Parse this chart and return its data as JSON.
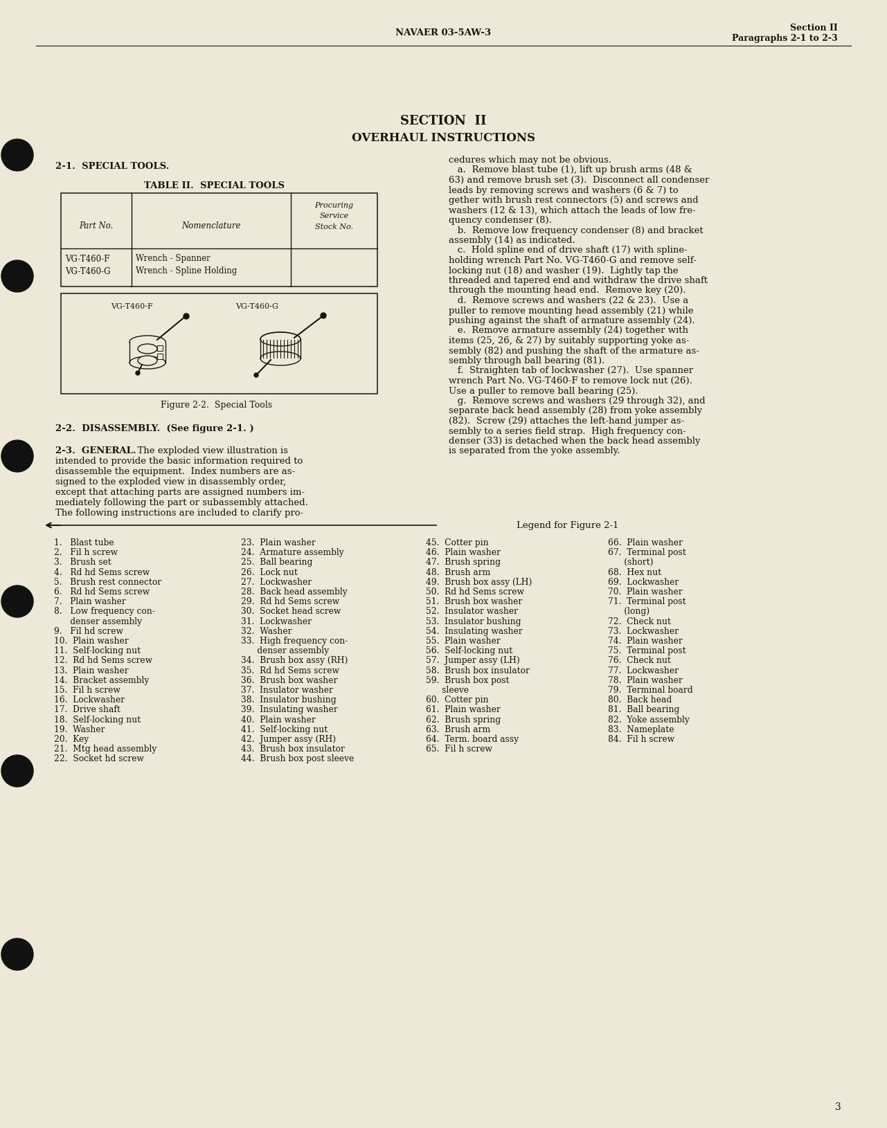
{
  "bg_color": "#ede8d8",
  "text_color": "#1a1410",
  "header_center": "NAVAER 03-5AW-3",
  "header_right_line1": "Section II",
  "header_right_line2": "Paragraphs 2-1 to 2-3",
  "section_title": "SECTION  II",
  "section_subtitle": "OVERHAUL INSTRUCTIONS",
  "para_21_title": "2-1.  SPECIAL TOOLS.",
  "table_title": "TABLE II.  SPECIAL TOOLS",
  "table_col1": "Part No.",
  "table_col2": "Nomenclature",
  "table_col3_line1": "Procuring",
  "table_col3_line2": "Service",
  "table_col3_line3": "Stock No.",
  "table_row1_col1": "VG-T460-F",
  "table_row1_col2": "Wrench - Spanner",
  "table_row2_col1": "VG-T460-G",
  "table_row2_col2": "Wrench - Spline Holding",
  "fig_label_left": "VG-T460-F",
  "fig_label_right": "VG-T460-G",
  "fig_caption": "Figure 2-2.  Special Tools",
  "para_22_title": "2-2.  DISASSEMBLY.  (See figure 2-1. )",
  "para_23_title": "2-3.  GENERAL.",
  "legend_title": "Legend for Figure 2-1",
  "page_number": "3",
  "left_col_lines": [
    "2-3.  GENERAL.  The exploded view illustration is",
    "intended to provide the basic information required to",
    "disassemble the equipment.  Index numbers are as-",
    "signed to the exploded view in disassembly order,",
    "except that attaching parts are assigned numbers im-",
    "mediately following the part or subassembly attached.",
    "The following instructions are included to clarify pro-"
  ],
  "right_col_lines": [
    "cedures which may not be obvious.",
    "   a.  Remove blast tube (1), lift up brush arms (48 &",
    "63) and remove brush set (3).  Disconnect all condenser",
    "leads by removing screws and washers (6 & 7) to",
    "gether with brush rest connectors (5) and screws and",
    "washers (12 & 13), which attach the leads of low fre-",
    "quency condenser (8).",
    "   b.  Remove low frequency condenser (8) and bracket",
    "assembly (14) as indicated.",
    "   c.  Hold spline end of drive shaft (17) with spline-",
    "holding wrench Part No. VG-T460-G and remove self-",
    "locking nut (18) and washer (19).  Lightly tap the",
    "threaded and tapered end and withdraw the drive shaft",
    "through the mounting head end.  Remove key (20).",
    "   d.  Remove screws and washers (22 & 23).  Use a",
    "puller to remove mounting head assembly (21) while",
    "pushing against the shaft of armature assembly (24).",
    "   e.  Remove armature assembly (24) together with",
    "items (25, 26, & 27) by suitably supporting yoke as-",
    "sembly (82) and pushing the shaft of the armature as-",
    "sembly through ball bearing (81).",
    "   f.  Straighten tab of lockwasher (27).  Use spanner",
    "wrench Part No. VG-T460-F to remove lock nut (26).",
    "Use a puller to remove ball bearing (25).",
    "   g.  Remove screws and washers (29 through 32), and",
    "separate back head assembly (28) from yoke assembly",
    "(82).  Screw (29) attaches the left-hand jumper as-",
    "sembly to a series field strap.  High frequency con-",
    "denser (33) is detached when the back head assembly",
    "is separated from the yoke assembly."
  ],
  "legend_items_col1": [
    "1.   Blast tube",
    "2.   Fil h screw",
    "3.   Brush set",
    "4.   Rd hd Sems screw",
    "5.   Brush rest connector",
    "6.   Rd hd Sems screw",
    "7.   Plain washer",
    "8.   Low frequency con-",
    "      denser assembly",
    "9.   Fil hd screw",
    "10.  Plain washer",
    "11.  Self-locking nut",
    "12.  Rd hd Sems screw",
    "13.  Plain washer",
    "14.  Bracket assembly",
    "15.  Fil h screw",
    "16.  Lockwasher",
    "17.  Drive shaft",
    "18.  Self-locking nut",
    "19.  Washer",
    "20.  Key",
    "21.  Mtg head assembly",
    "22.  Socket hd screw"
  ],
  "legend_items_col2": [
    "23.  Plain washer",
    "24.  Armature assembly",
    "25.  Ball bearing",
    "26.  Lock nut",
    "27.  Lockwasher",
    "28.  Back head assembly",
    "29.  Rd hd Sems screw",
    "30.  Socket head screw",
    "31.  Lockwasher",
    "32.  Washer",
    "33.  High frequency con-",
    "      denser assembly",
    "34.  Brush box assy (RH)",
    "35.  Rd hd Sems screw",
    "36.  Brush box washer",
    "37.  Insulator washer",
    "38.  Insulator bushing",
    "39.  Insulating washer",
    "40.  Plain washer",
    "41.  Self-locking nut",
    "42.  Jumper assy (RH)",
    "43.  Brush box insulator",
    "44.  Brush box post sleeve"
  ],
  "legend_items_col3": [
    "45.  Cotter pin",
    "46.  Plain washer",
    "47.  Brush spring",
    "48.  Brush arm",
    "49.  Brush box assy (LH)",
    "50.  Rd hd Sems screw",
    "51.  Brush box washer",
    "52.  Insulator washer",
    "53.  Insulator bushing",
    "54.  Insulating washer",
    "55.  Plain washer",
    "56.  Self-locking nut",
    "57.  Jumper assy (LH)",
    "58.  Brush box insulator",
    "59.  Brush box post",
    "      sleeve",
    "60.  Cotter pin",
    "61.  Plain washer",
    "62.  Brush spring",
    "63.  Brush arm",
    "64.  Term. board assy",
    "65.  Fil h screw"
  ],
  "legend_items_col4": [
    "66.  Plain washer",
    "67.  Terminal post",
    "      (short)",
    "68.  Hex nut",
    "69.  Lockwasher",
    "70.  Plain washer",
    "71.  Terminal post",
    "      (long)",
    "72.  Check nut",
    "73.  Lockwasher",
    "74.  Plain washer",
    "75.  Terminal post",
    "76.  Check nut",
    "77.  Lockwasher",
    "78.  Plain washer",
    "79.  Terminal board",
    "80.  Back head",
    "81.  Ball bearing",
    "82.  Yoke assembly",
    "83.  Nameplate",
    "84.  Fil h screw"
  ]
}
